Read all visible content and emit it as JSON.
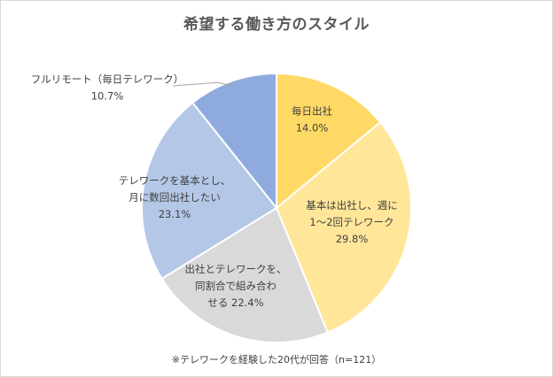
{
  "chart_data": {
    "type": "pie",
    "title": "希望する働き方のスタイル",
    "footnote": "※テレワークを経験した20代が回答（n=121）",
    "slices": [
      {
        "label_lines": [
          "毎日出社",
          "14.0%"
        ],
        "value": 14.0,
        "color": "#ffd966"
      },
      {
        "label_lines": [
          "基本は出社し、週に",
          "1～2回テレワーク",
          "29.8%"
        ],
        "value": 29.8,
        "color": "#ffe699"
      },
      {
        "label_lines": [
          "出社とテレワークを、",
          "同割合で組み合わ",
          "せる 22.4%"
        ],
        "value": 22.4,
        "color": "#d9d9d9"
      },
      {
        "label_lines": [
          "テレワークを基本とし、",
          "月に数回出社したい",
          "23.1%"
        ],
        "value": 23.1,
        "color": "#b4c7e7"
      },
      {
        "label_lines": [
          "フルリモート（毎日テレワーク）",
          "10.7%"
        ],
        "value": 10.7,
        "color": "#8faadc"
      }
    ]
  }
}
